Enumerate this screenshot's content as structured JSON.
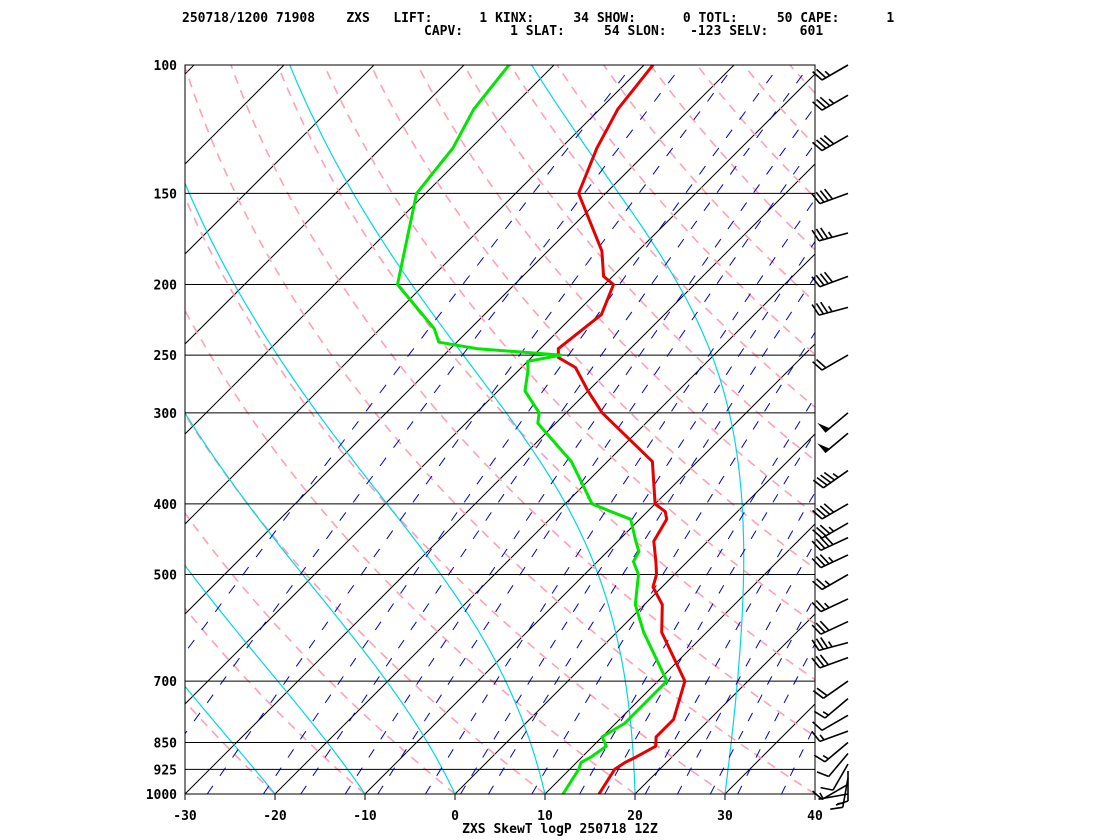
{
  "header": {
    "line1": "250718/1200 71908    ZXS   LIFT:      1 KINX:     34 SHOW:      0 TOTL:     50 CAPE:      1",
    "line2": "CAPV:      1 SLAT:     54 SLON:   -123 SELV:    601"
  },
  "footer": "ZXS SkewT logP 250718 12Z",
  "colors": {
    "isobar": "#000000",
    "dry_adiabat": "#ffa0b4",
    "moist_adiabat": "#00d7e6",
    "mixing_ratio": "#0000c8",
    "temperature": "#e60000",
    "dewpoint": "#00e600",
    "wind_barb": "#000000"
  },
  "chart_data": {
    "type": "skew-t log-p",
    "title": "ZXS SkewT logP 250718 12Z",
    "pressure_levels": [
      "100",
      "150",
      "200",
      "250",
      "300",
      "400",
      "500",
      "700",
      "850",
      "925",
      "1000"
    ],
    "temperature_ticks": [
      "-30",
      "-20",
      "-10",
      "0",
      "10",
      "20",
      "30",
      "40"
    ],
    "xlim": [
      -30,
      40
    ],
    "ylim_hPa": [
      1000,
      100
    ],
    "y_scale": "log",
    "temperature_profile": {
      "name": "temperature",
      "p": [
        1000,
        925,
        905,
        890,
        860,
        835,
        800,
        790,
        700,
        600,
        550,
        520,
        500,
        480,
        450,
        420,
        410,
        400,
        350,
        300,
        280,
        260,
        252,
        245,
        220,
        200,
        195,
        180,
        150,
        130,
        115,
        100
      ],
      "t": [
        16,
        15,
        15.4,
        16,
        17,
        16,
        16,
        16,
        13,
        5,
        2,
        -1,
        -2,
        -3.5,
        -6,
        -7,
        -8,
        -10,
        -15,
        -26,
        -30,
        -34,
        -37,
        -38,
        -37,
        -39,
        -41,
        -44,
        -53,
        -56,
        -58,
        -59
      ]
    },
    "dewpoint_profile": {
      "name": "dewpoint",
      "p": [
        1000,
        925,
        905,
        890,
        860,
        835,
        800,
        790,
        700,
        600,
        550,
        500,
        480,
        465,
        450,
        420,
        410,
        400,
        350,
        310,
        300,
        280,
        262,
        255,
        250,
        245,
        240,
        230,
        200,
        150,
        130,
        115,
        100
      ],
      "t": [
        12,
        11,
        10.5,
        11,
        11.5,
        10,
        11,
        11,
        11,
        3,
        -1,
        -4,
        -6,
        -6.5,
        -8,
        -11,
        -14,
        -17,
        -24,
        -32,
        -33,
        -37,
        -39,
        -40,
        -37,
        -47,
        -52,
        -54,
        -63,
        -71,
        -72,
        -74,
        -75
      ]
    },
    "wind_barbs": {
      "p": [
        1000,
        970,
        950,
        930,
        910,
        880,
        850,
        820,
        780,
        740,
        700,
        650,
        620,
        580,
        540,
        500,
        470,
        445,
        425,
        400,
        360,
        320,
        300,
        250,
        215,
        195,
        170,
        150,
        125,
        110,
        100
      ],
      "direction_deg": [
        260,
        240,
        190,
        180,
        210,
        220,
        230,
        250,
        240,
        230,
        235,
        250,
        255,
        245,
        245,
        240,
        245,
        245,
        240,
        240,
        235,
        230,
        230,
        240,
        255,
        250,
        255,
        250,
        240,
        240,
        240
      ],
      "speed_kt": [
        5,
        10,
        15,
        10,
        10,
        10,
        15,
        15,
        10,
        15,
        20,
        30,
        35,
        30,
        25,
        25,
        35,
        40,
        35,
        40,
        45,
        50,
        50,
        20,
        35,
        40,
        35,
        40,
        40,
        35,
        25
      ]
    }
  }
}
